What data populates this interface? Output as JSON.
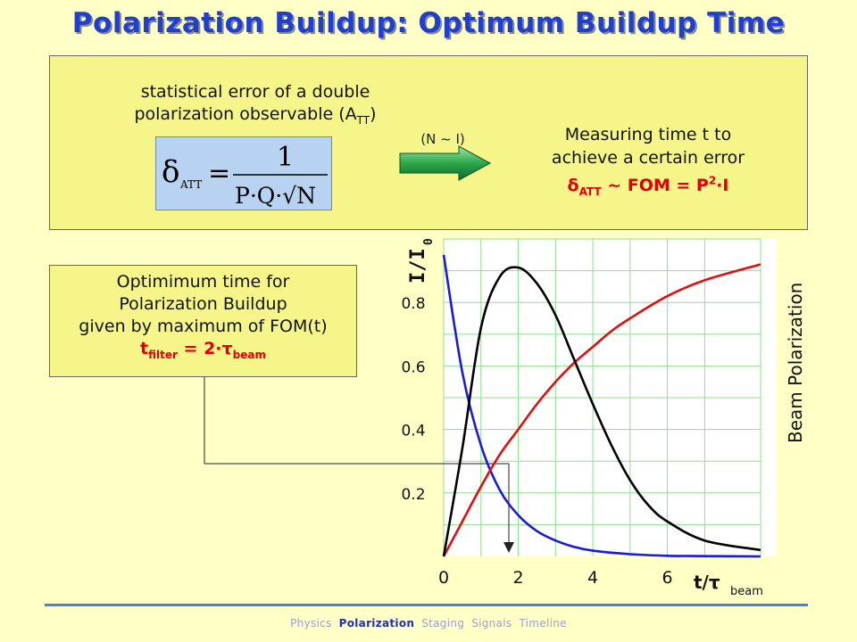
{
  "slide": {
    "title": "Polarization Buildup: Optimum Buildup Time",
    "top_box": {
      "error_label_line1": "statistical error of a double",
      "error_label_line2": "polarization observable (A",
      "error_label_sub": "TT",
      "error_label_tail": ")",
      "formula_lhs": "δ",
      "formula_lhs_sub": "ATT",
      "formula_numerator": "1",
      "formula_denominator": "P·Q·√N",
      "arrow_label": "(N ~ I)",
      "measure_line1": "Measuring time t to",
      "measure_line2": "achieve a certain error",
      "measure_line3_a": "δ",
      "measure_line3_sub": "ATT",
      "measure_line3_b": " ~ FOM = P",
      "measure_line3_sup": "2",
      "measure_line3_c": "·I"
    },
    "opt_box": {
      "line1": "Optimimum time for",
      "line2": "Polarization Buildup",
      "line3": "given by maximum of FOM(t)",
      "formula_a": "t",
      "formula_sub1": "filter",
      "formula_b": " = 2·τ",
      "formula_sub2": "beam"
    },
    "footer_nav": [
      "Physics",
      "Polarization",
      "Staging",
      "Signals",
      "Timeline"
    ],
    "footer_active": "Polarization"
  },
  "chart_data": {
    "type": "line",
    "y_left_label": "I/I",
    "y_left_label_sub": "0",
    "y_right_label": "Beam Polarization",
    "x_label": "t/τ",
    "x_label_sub": "beam",
    "x_range": [
      0,
      8.5
    ],
    "y_range": [
      0,
      1
    ],
    "x_ticks": [
      0,
      2,
      4,
      6
    ],
    "y_ticks": [
      0.2,
      0.4,
      0.6,
      0.8
    ],
    "grid": true,
    "optimum_x": 2,
    "series": [
      {
        "color": "#1a1ad8",
        "x": [
          0,
          0.5,
          1,
          1.5,
          2,
          2.5,
          3,
          3.5,
          4,
          5,
          6,
          7,
          8.5
        ],
        "y": [
          0.95,
          0.58,
          0.35,
          0.21,
          0.13,
          0.08,
          0.05,
          0.03,
          0.018,
          0.007,
          0.002,
          0.001,
          0
        ]
      },
      {
        "color": "#e01010",
        "x": [
          0,
          0.5,
          1,
          1.5,
          2,
          2.5,
          3,
          3.5,
          4,
          4.5,
          5,
          6,
          7,
          8.5
        ],
        "y": [
          0,
          0.11,
          0.22,
          0.32,
          0.4,
          0.48,
          0.55,
          0.61,
          0.66,
          0.71,
          0.75,
          0.82,
          0.87,
          0.92
        ]
      },
      {
        "color": "#000000",
        "x": [
          0,
          0.5,
          1,
          1.5,
          2,
          2.5,
          3,
          3.5,
          4,
          4.5,
          5,
          5.5,
          6,
          7,
          8.5
        ],
        "y": [
          0,
          0.34,
          0.72,
          0.88,
          0.91,
          0.86,
          0.76,
          0.62,
          0.48,
          0.35,
          0.24,
          0.16,
          0.11,
          0.05,
          0.02
        ]
      }
    ]
  }
}
